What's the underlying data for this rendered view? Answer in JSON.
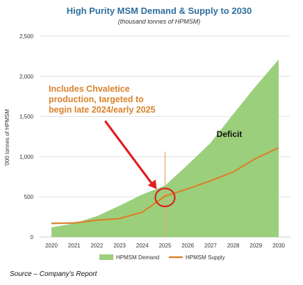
{
  "chart_data": {
    "type": "area",
    "title": "High Purity MSM Demand & Supply to 2030",
    "subtitle": "(thousand tonnes of HPMSM)",
    "ylabel": "'000 tonnes of HPMSM",
    "xlabel": "",
    "x": [
      "2020",
      "2021",
      "2022",
      "2023",
      "2024",
      "2025",
      "2026",
      "2027",
      "2028",
      "2029",
      "2030"
    ],
    "ylim": [
      0,
      2500
    ],
    "yticks": [
      0,
      500,
      1000,
      1500,
      2000,
      2500
    ],
    "ytick_labels": [
      "0",
      "500",
      "1,000",
      "1,500",
      "2,000",
      "2,500"
    ],
    "grid": "horizontal",
    "legend_position": "bottom",
    "series": [
      {
        "name": "HPMSM Demand",
        "type": "area",
        "color": "#9bcf7c",
        "values": [
          120,
          170,
          260,
          390,
          530,
          640,
          900,
          1170,
          1530,
          1880,
          2210
        ]
      },
      {
        "name": "HPMSM Supply",
        "type": "line",
        "color": "#d9822b",
        "values": [
          170,
          175,
          210,
          230,
          310,
          510,
          600,
          700,
          810,
          980,
          1110
        ]
      }
    ],
    "annotations": {
      "callout": "Includes Chvaletice production, targeted to begin late 2024/early 2025",
      "callout_lines": [
        "Includes Chvaletice",
        "production, targeted to",
        "begin late 2024/early 2025"
      ],
      "region_label": "Deficit",
      "marker_year": "2025",
      "vertical_line_x": 2025,
      "marker_circle_color": "#e02020",
      "arrow_color": "#e02020"
    }
  },
  "source_note": "Source – Company’s Report"
}
